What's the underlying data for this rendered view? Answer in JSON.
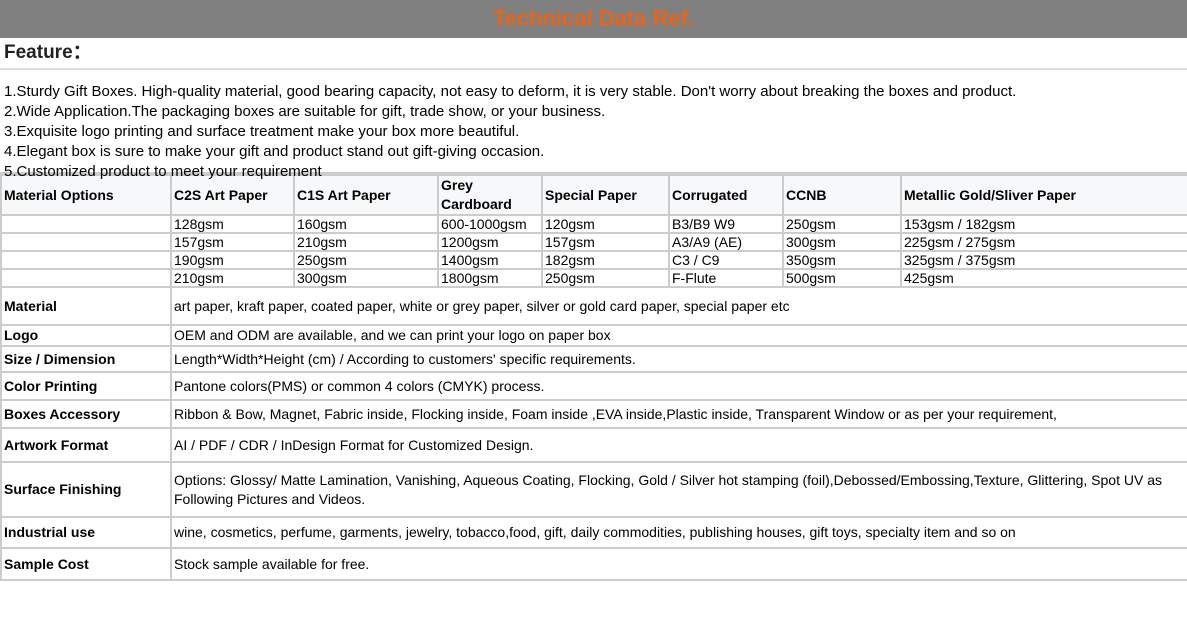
{
  "banner": {
    "title": "Technical Data Ref."
  },
  "feature": {
    "title": "Feature：",
    "items": [
      "1.Sturdy Gift Boxes. High-quality material, good bearing capacity, not easy to deform, it is very stable. Don't worry about breaking the boxes and product.",
      "2.Wide Application.The packaging boxes are suitable for gift, trade show, or your business.",
      "3.Exquisite logo printing and surface treatment make your box more beautiful.",
      "4.Elegant box is sure to make your gift and product stand out gift-giving occasion.",
      "5.Customized product to meet your requirement"
    ]
  },
  "materials": {
    "headers": [
      "Material Options",
      "C2S Art Paper",
      "C1S Art Paper",
      "Grey Cardboard",
      "Special Paper",
      "Corrugated",
      "CCNB",
      "Metallic Gold/Sliver Paper"
    ],
    "rows": [
      [
        "",
        "128gsm",
        "160gsm",
        "600-1000gsm",
        "120gsm",
        "B3/B9 W9",
        "250gsm",
        "153gsm / 182gsm"
      ],
      [
        "",
        "157gsm",
        "210gsm",
        "1200gsm",
        "157gsm",
        "A3/A9 (AE)",
        "300gsm",
        "225gsm / 275gsm"
      ],
      [
        "",
        "190gsm",
        "250gsm",
        "1400gsm",
        "182gsm",
        "C3 / C9",
        "350gsm",
        "325gsm / 375gsm"
      ],
      [
        "",
        "210gsm",
        "300gsm",
        "1800gsm",
        "250gsm",
        "F-Flute",
        "500gsm",
        "425gsm"
      ]
    ]
  },
  "specs": [
    {
      "label": "Material",
      "value": "art paper, kraft paper, coated paper, white or grey paper, silver or gold card paper, special paper etc"
    },
    {
      "label": "Logo",
      "value": "OEM and ODM are available, and we can print your logo on paper box"
    },
    {
      "label": "Size / Dimension",
      "value": "Length*Width*Height (cm) / According to customers' specific requirements."
    },
    {
      "label": "Color Printing",
      "value": "Pantone colors(PMS) or common 4 colors (CMYK) process."
    },
    {
      "label": "Boxes Accessory",
      "value": "Ribbon & Bow, Magnet, Fabric inside, Flocking inside, Foam inside ,EVA inside,Plastic inside, Transparent Window or as per your requirement,"
    },
    {
      "label": "Artwork Format",
      "value": "AI / PDF / CDR / InDesign Format for Customized Design."
    },
    {
      "label": "Surface Finishing",
      "value": "Options: Glossy/ Matte Lamination, Vanishing, Aqueous Coating, Flocking, Gold / Silver hot stamping (foil),Debossed/Embossing,Texture, Glittering, Spot UV as Following Pictures and Videos."
    },
    {
      "label": "Industrial use",
      "value": "wine, cosmetics, perfume, garments, jewelry, tobacco,food, gift, daily commodities, publishing houses, gift toys, specialty item and so on"
    },
    {
      "label": "Sample Cost",
      "value": "Stock sample available for free."
    }
  ]
}
